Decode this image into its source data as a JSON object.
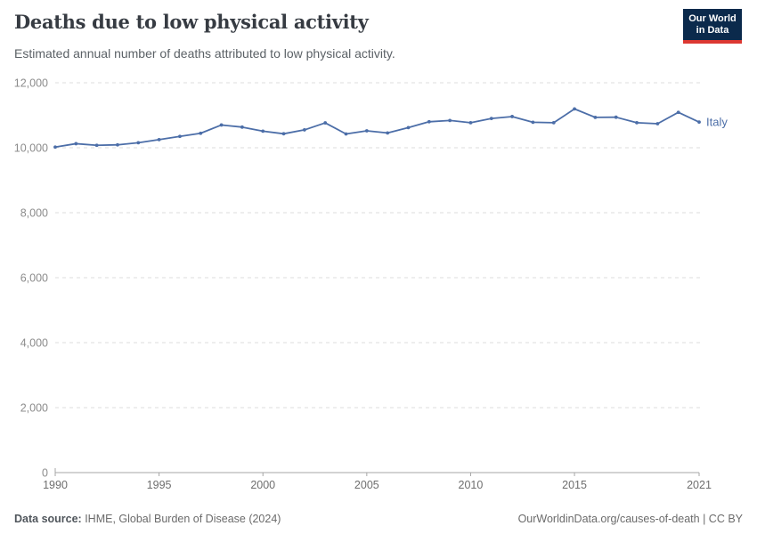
{
  "header": {
    "title": "Deaths due to low physical activity",
    "subtitle": "Estimated annual number of deaths attributed to low physical activity.",
    "logo": {
      "line1": "Our World",
      "line2": "in Data",
      "bg_color": "#0b2a4c",
      "accent_color": "#dc3832"
    }
  },
  "chart_data": {
    "type": "line",
    "title": "Deaths due to low physical activity",
    "subtitle": "Estimated annual number of deaths attributed to low physical activity.",
    "x": [
      1990,
      1991,
      1992,
      1993,
      1994,
      1995,
      1996,
      1997,
      1998,
      1999,
      2000,
      2001,
      2002,
      2003,
      2004,
      2005,
      2006,
      2007,
      2008,
      2009,
      2010,
      2011,
      2012,
      2013,
      2014,
      2015,
      2016,
      2017,
      2018,
      2019,
      2020,
      2021
    ],
    "series": [
      {
        "name": "Italy",
        "color": "#4c6ea8",
        "values": [
          10020,
          10125,
          10075,
          10090,
          10155,
          10250,
          10350,
          10445,
          10700,
          10635,
          10510,
          10430,
          10550,
          10765,
          10425,
          10520,
          10455,
          10620,
          10800,
          10840,
          10770,
          10900,
          10960,
          10785,
          10770,
          11195,
          10935,
          10940,
          10770,
          10740,
          11090,
          10790
        ]
      }
    ],
    "xlabel": "",
    "ylabel": "",
    "xlim": [
      1990,
      2021
    ],
    "ylim": [
      0,
      12000
    ],
    "yticks": [
      0,
      2000,
      4000,
      6000,
      8000,
      10000,
      12000
    ],
    "xticks": [
      1990,
      1995,
      2000,
      2005,
      2010,
      2015,
      2021
    ],
    "grid": "horizontal-dashed",
    "legend_position": "end-of-line-label",
    "colors": {
      "gridline": "#dcdcdc",
      "axis": "#a6a6a6",
      "y_tick_label": "#8c8c8c",
      "x_tick_label": "#6e6e6e"
    }
  },
  "footer": {
    "source_label": "Data source:",
    "source_text": " IHME, Global Burden of Disease (2024)",
    "right_text": "OurWorldinData.org/causes-of-death | CC BY"
  }
}
